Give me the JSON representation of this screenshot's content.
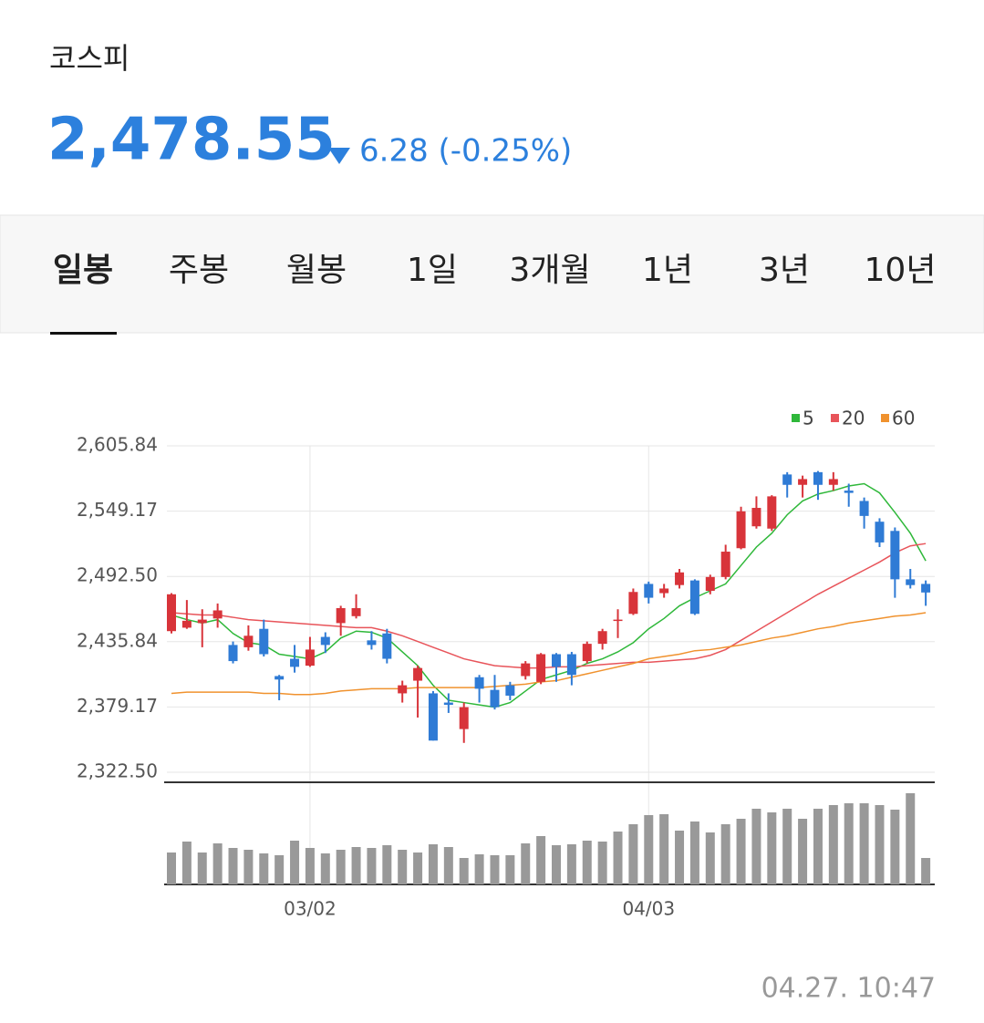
{
  "header": {
    "title": "코스피",
    "price": "2,478.55",
    "change": "6.28 (-0.25%)"
  },
  "tabs": [
    "일봉",
    "주봉",
    "월봉",
    "1일",
    "3개월",
    "1년",
    "3년",
    "10년"
  ],
  "timestamp": "04.27. 10:47",
  "chart_data": {
    "type": "candlestick",
    "categories": [
      null,
      null,
      null,
      null,
      null,
      null,
      null,
      null,
      null,
      "03/02",
      null,
      null,
      null,
      null,
      null,
      null,
      null,
      null,
      null,
      null,
      null,
      null,
      null,
      null,
      null,
      null,
      null,
      null,
      null,
      null,
      null,
      "04/03",
      null,
      null,
      null,
      null,
      null,
      null,
      null,
      null,
      null,
      null,
      null,
      null,
      null,
      null,
      null,
      null,
      null,
      null
    ],
    "open": [
      2445,
      2448,
      2452,
      2456,
      2433,
      2431,
      2447,
      2406,
      2421,
      2415,
      2440,
      2452,
      2458,
      2437,
      2443,
      2391,
      2402,
      2391,
      2383,
      2360,
      2405,
      2394,
      2398,
      2406,
      2401,
      2425,
      2425,
      2419,
      2434,
      2454,
      2460,
      2486,
      2478,
      2485,
      2489,
      2480,
      2492,
      2517,
      2536,
      2534,
      2581,
      2572,
      2583,
      2572,
      2567,
      2558,
      2540,
      2532,
      2490,
      2486
    ],
    "high": [
      2478,
      2472,
      2464,
      2469,
      2436,
      2450,
      2455,
      2407,
      2433,
      2440,
      2444,
      2467,
      2477,
      2445,
      2447,
      2402,
      2415,
      2393,
      2391,
      2383,
      2407,
      2407,
      2401,
      2419,
      2426,
      2426,
      2427,
      2436,
      2447,
      2464,
      2482,
      2488,
      2486,
      2499,
      2490,
      2494,
      2520,
      2553,
      2562,
      2563,
      2583,
      2580,
      2584,
      2583,
      2573,
      2561,
      2543,
      2535,
      2499,
      2489
    ],
    "low": [
      2443,
      2447,
      2431,
      2448,
      2417,
      2428,
      2423,
      2385,
      2409,
      2414,
      2426,
      2441,
      2456,
      2429,
      2417,
      2383,
      2370,
      2350,
      2374,
      2348,
      2383,
      2377,
      2385,
      2403,
      2399,
      2401,
      2398,
      2417,
      2429,
      2439,
      2459,
      2469,
      2474,
      2482,
      2459,
      2477,
      2490,
      2516,
      2534,
      2532,
      2561,
      2561,
      2559,
      2567,
      2553,
      2534,
      2518,
      2474,
      2482,
      2467
    ],
    "close": [
      2477,
      2454,
      2455,
      2463,
      2419,
      2441,
      2425,
      2403,
      2414,
      2429,
      2433,
      2465,
      2465,
      2433,
      2421,
      2398,
      2413,
      2350,
      2381,
      2379,
      2395,
      2379,
      2389,
      2417,
      2425,
      2414,
      2407,
      2434,
      2445,
      2455,
      2479,
      2474,
      2482,
      2496,
      2460,
      2492,
      2514,
      2549,
      2552,
      2562,
      2572,
      2577,
      2572,
      2577,
      2565,
      2545,
      2522,
      2490,
      2485,
      2478.55
    ],
    "up_color": "#d8343a",
    "down_color": "#2f7bd5",
    "series": [
      {
        "name": "5",
        "color": "#2fb83a",
        "values": [
          2459,
          2455,
          2452,
          2455,
          2443,
          2435,
          2433,
          2425,
          2423,
          2421,
          2427,
          2439,
          2445,
          2444,
          2439,
          2427,
          2415,
          2398,
          2385,
          2383,
          2381,
          2379,
          2383,
          2393,
          2403,
          2407,
          2411,
          2417,
          2421,
          2427,
          2435,
          2447,
          2456,
          2467,
          2474,
          2480,
          2486,
          2502,
          2518,
          2530,
          2546,
          2558,
          2564,
          2567,
          2571,
          2573,
          2565,
          2548,
          2530,
          2506
        ]
      },
      {
        "name": "20",
        "color": "#e8545a",
        "values": [
          2461,
          2460,
          2459,
          2459,
          2457,
          2455,
          2454,
          2453,
          2452,
          2451,
          2450,
          2449,
          2448,
          2448,
          2445,
          2441,
          2436,
          2431,
          2426,
          2421,
          2418,
          2415,
          2414,
          2413,
          2413,
          2414,
          2414,
          2415,
          2416,
          2417,
          2418,
          2418,
          2419,
          2420,
          2421,
          2424,
          2429,
          2437,
          2445,
          2453,
          2461,
          2469,
          2477,
          2484,
          2491,
          2498,
          2505,
          2513,
          2519,
          2521
        ]
      },
      {
        "name": "60",
        "color": "#f0922e",
        "values": [
          2391,
          2392,
          2392,
          2392,
          2392,
          2392,
          2391,
          2391,
          2390,
          2390,
          2391,
          2393,
          2394,
          2395,
          2395,
          2395,
          2396,
          2396,
          2396,
          2396,
          2396,
          2397,
          2398,
          2399,
          2401,
          2402,
          2405,
          2408,
          2411,
          2414,
          2417,
          2421,
          2423,
          2425,
          2428,
          2429,
          2431,
          2433,
          2436,
          2439,
          2441,
          2444,
          2447,
          2449,
          2452,
          2454,
          2456,
          2458,
          2459,
          2461
        ]
      }
    ],
    "volume": {
      "color": "#999999",
      "values": [
        35,
        47,
        35,
        45,
        40,
        38,
        34,
        32,
        48,
        40,
        34,
        38,
        41,
        40,
        43,
        38,
        35,
        44,
        41,
        29,
        33,
        32,
        32,
        45,
        53,
        43,
        44,
        48,
        47,
        58,
        66,
        76,
        77,
        59,
        69,
        57,
        66,
        72,
        83,
        79,
        83,
        72,
        83,
        87,
        89,
        89,
        87,
        82,
        100,
        29
      ]
    },
    "ylim": [
      2322.5,
      2605.84
    ],
    "yticks": [
      {
        "value": 2605.84,
        "label": "2,605.84"
      },
      {
        "value": 2549.17,
        "label": "2,549.17"
      },
      {
        "value": 2492.5,
        "label": "2,492.50"
      },
      {
        "value": 2435.84,
        "label": "2,435.84"
      },
      {
        "value": 2379.17,
        "label": "2,379.17"
      },
      {
        "value": 2322.5,
        "label": "2,322.50"
      }
    ],
    "grid": true
  }
}
